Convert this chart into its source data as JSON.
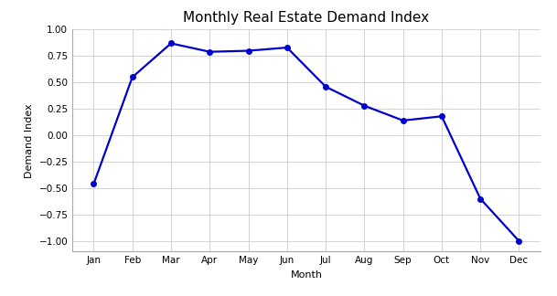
{
  "title": "Monthly Real Estate Demand Index",
  "xlabel": "Month",
  "ylabel": "Demand Index",
  "months": [
    "Jan",
    "Feb",
    "Mar",
    "Apr",
    "May",
    "Jun",
    "Jul",
    "Aug",
    "Sep",
    "Oct",
    "Nov",
    "Dec"
  ],
  "values": [
    -0.46,
    0.55,
    0.87,
    0.79,
    0.8,
    0.83,
    0.46,
    0.28,
    0.14,
    0.18,
    -0.6,
    -1.0
  ],
  "line_color": "#0000cc",
  "marker": "o",
  "marker_size": 4,
  "linewidth": 1.6,
  "ylim": [
    -1.1,
    1.0
  ],
  "background_color": "#ffffff",
  "grid_color": "#cccccc",
  "title_fontsize": 11,
  "label_fontsize": 8,
  "tick_fontsize": 7.5,
  "figure_width": 6.09,
  "figure_height": 3.24,
  "dpi": 100
}
